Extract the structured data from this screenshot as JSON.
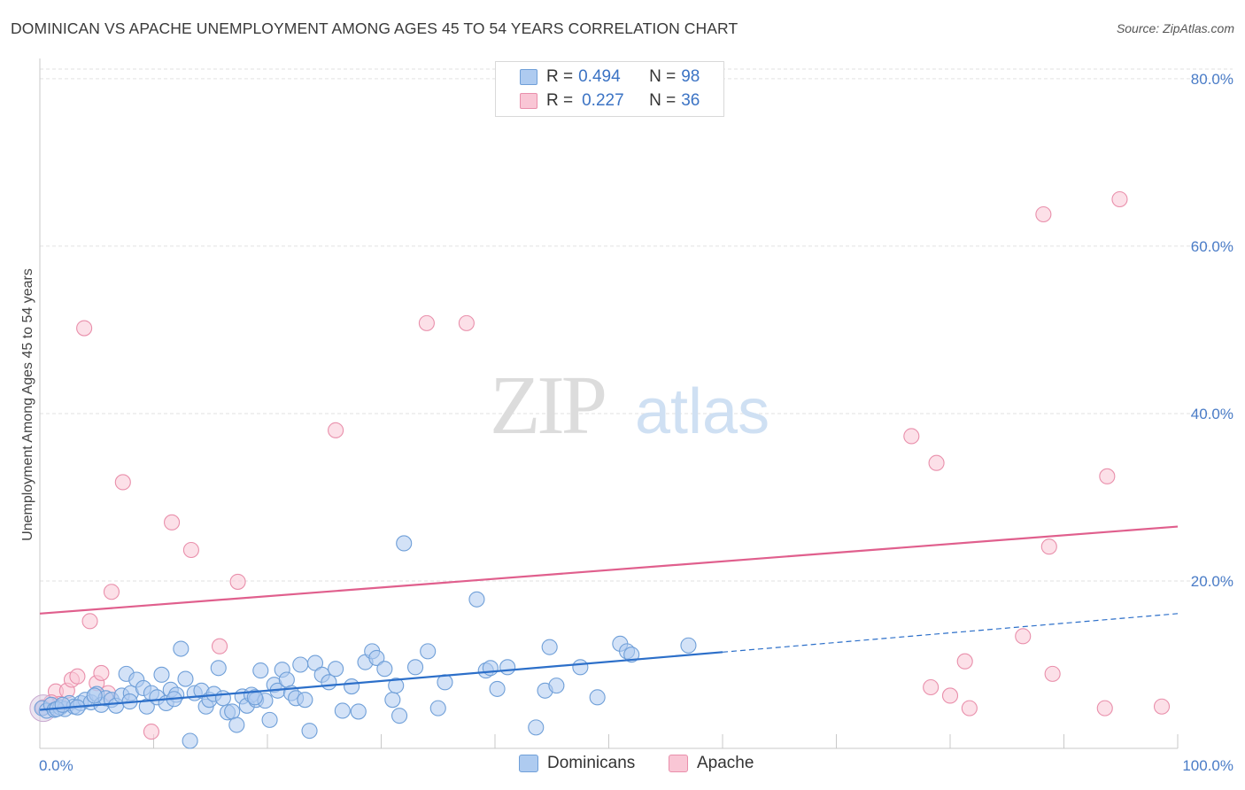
{
  "title": "DOMINICAN VS APACHE UNEMPLOYMENT AMONG AGES 45 TO 54 YEARS CORRELATION CHART",
  "source": "Source: ZipAtlas.com",
  "watermark": {
    "zip": "ZIP",
    "atlas": "atlas"
  },
  "legend": {
    "rows": [
      {
        "r_label": "R = ",
        "r_value": "0.494",
        "n_label": "N = ",
        "n_value": "98",
        "color": "#aecbf0",
        "stroke": "#6f9fd8"
      },
      {
        "r_label": "R = ",
        "r_value": "0.227",
        "n_label": "N = ",
        "n_value": "36",
        "color": "#f9c6d5",
        "stroke": "#e98fab"
      }
    ]
  },
  "bottom_legend": [
    {
      "label": "Dominicans",
      "color": "#aecbf0",
      "stroke": "#6f9fd8"
    },
    {
      "label": "Apache",
      "color": "#f9c6d5",
      "stroke": "#e98fab"
    }
  ],
  "chart_data": {
    "type": "scatter",
    "title": "DOMINICAN VS APACHE UNEMPLOYMENT AMONG AGES 45 TO 54 YEARS CORRELATION CHART",
    "xlabel": "",
    "ylabel": "Unemployment Among Ages 45 to 54 years",
    "xlim": [
      0,
      100
    ],
    "ylim": [
      0,
      82
    ],
    "x_tick_labels": [
      "0.0%",
      "100.0%"
    ],
    "y_ticks": [
      20,
      40,
      60,
      80
    ],
    "y_tick_labels": [
      "20.0%",
      "40.0%",
      "60.0%",
      "80.0%"
    ],
    "grid": "horizontal dashed",
    "legend_position": "top-center",
    "series": [
      {
        "name": "Dominicans",
        "color": "#6f9fd8",
        "fill": "#aecbf0",
        "trend": {
          "x0": 0,
          "y0": 4.6,
          "x1": 60,
          "y1": 11.5,
          "dashed_to_x": 100,
          "dashed_to_y": 16.1,
          "color": "#2c6fc9"
        },
        "points": [
          [
            0.2,
            4.8
          ],
          [
            0.6,
            4.5
          ],
          [
            1.0,
            5.2
          ],
          [
            1.3,
            4.6
          ],
          [
            1.8,
            4.9
          ],
          [
            2.2,
            4.7
          ],
          [
            2.6,
            5.4
          ],
          [
            3.0,
            5.0
          ],
          [
            3.6,
            5.4
          ],
          [
            4.0,
            5.8
          ],
          [
            4.5,
            5.5
          ],
          [
            5.0,
            6.5
          ],
          [
            5.4,
            5.2
          ],
          [
            5.8,
            6.0
          ],
          [
            6.3,
            5.8
          ],
          [
            6.7,
            5.1
          ],
          [
            7.2,
            6.3
          ],
          [
            7.6,
            8.9
          ],
          [
            8.0,
            6.6
          ],
          [
            8.5,
            8.2
          ],
          [
            9.1,
            7.2
          ],
          [
            9.4,
            5.0
          ],
          [
            9.8,
            6.6
          ],
          [
            10.3,
            6.1
          ],
          [
            10.7,
            8.8
          ],
          [
            11.1,
            5.4
          ],
          [
            11.5,
            7.0
          ],
          [
            12.0,
            6.4
          ],
          [
            12.4,
            11.9
          ],
          [
            12.8,
            8.3
          ],
          [
            13.2,
            0.9
          ],
          [
            13.6,
            6.6
          ],
          [
            14.2,
            6.9
          ],
          [
            14.6,
            5.0
          ],
          [
            14.9,
            5.8
          ],
          [
            15.3,
            6.5
          ],
          [
            15.7,
            9.6
          ],
          [
            16.1,
            6.0
          ],
          [
            16.5,
            4.3
          ],
          [
            16.9,
            4.4
          ],
          [
            17.3,
            2.8
          ],
          [
            17.8,
            6.2
          ],
          [
            18.2,
            5.1
          ],
          [
            18.6,
            6.4
          ],
          [
            19.0,
            5.8
          ],
          [
            19.4,
            9.3
          ],
          [
            19.8,
            5.7
          ],
          [
            20.2,
            3.4
          ],
          [
            20.6,
            7.6
          ],
          [
            20.9,
            6.9
          ],
          [
            21.3,
            9.4
          ],
          [
            21.7,
            8.2
          ],
          [
            22.1,
            6.6
          ],
          [
            22.5,
            6.0
          ],
          [
            22.9,
            10.0
          ],
          [
            23.3,
            5.8
          ],
          [
            23.7,
            2.1
          ],
          [
            24.2,
            10.2
          ],
          [
            24.8,
            8.8
          ],
          [
            25.4,
            7.9
          ],
          [
            26.0,
            9.5
          ],
          [
            26.6,
            4.5
          ],
          [
            27.4,
            7.4
          ],
          [
            28.0,
            4.4
          ],
          [
            28.6,
            10.3
          ],
          [
            29.2,
            11.6
          ],
          [
            29.6,
            10.8
          ],
          [
            30.3,
            9.5
          ],
          [
            31.0,
            5.8
          ],
          [
            31.3,
            7.5
          ],
          [
            31.6,
            3.9
          ],
          [
            32.0,
            24.5
          ],
          [
            33.0,
            9.7
          ],
          [
            34.1,
            11.6
          ],
          [
            35.0,
            4.8
          ],
          [
            35.6,
            7.9
          ],
          [
            38.4,
            17.8
          ],
          [
            39.2,
            9.3
          ],
          [
            39.6,
            9.6
          ],
          [
            40.2,
            7.1
          ],
          [
            41.1,
            9.7
          ],
          [
            43.6,
            2.5
          ],
          [
            44.4,
            6.9
          ],
          [
            44.8,
            12.1
          ],
          [
            45.4,
            7.5
          ],
          [
            47.5,
            9.7
          ],
          [
            49.0,
            6.1
          ],
          [
            51.0,
            12.5
          ],
          [
            51.6,
            11.6
          ],
          [
            52.0,
            11.2
          ],
          [
            57.0,
            12.3
          ],
          [
            1.5,
            4.7
          ],
          [
            2.0,
            5.2
          ],
          [
            3.3,
            4.9
          ],
          [
            4.8,
            6.3
          ],
          [
            7.9,
            5.6
          ],
          [
            11.8,
            5.9
          ],
          [
            18.9,
            6.1
          ]
        ]
      },
      {
        "name": "Apache",
        "color": "#e98fab",
        "fill": "#f9c6d5",
        "trend": {
          "x0": 0,
          "y0": 16.1,
          "x1": 100,
          "y1": 26.5,
          "color": "#e05f8d"
        },
        "points": [
          [
            0.3,
            4.9
          ],
          [
            1.4,
            6.8
          ],
          [
            1.7,
            5.3
          ],
          [
            2.4,
            6.9
          ],
          [
            2.8,
            8.2
          ],
          [
            3.3,
            8.6
          ],
          [
            3.9,
            50.2
          ],
          [
            4.4,
            15.2
          ],
          [
            5.0,
            7.8
          ],
          [
            5.4,
            9.0
          ],
          [
            6.0,
            6.6
          ],
          [
            6.3,
            18.7
          ],
          [
            7.3,
            31.8
          ],
          [
            9.8,
            2.0
          ],
          [
            11.6,
            27.0
          ],
          [
            13.3,
            23.7
          ],
          [
            15.8,
            12.2
          ],
          [
            17.4,
            19.9
          ],
          [
            26.0,
            38.0
          ],
          [
            34.0,
            50.8
          ],
          [
            37.5,
            50.8
          ],
          [
            76.6,
            37.3
          ],
          [
            78.3,
            7.3
          ],
          [
            78.8,
            34.1
          ],
          [
            80.0,
            6.3
          ],
          [
            81.3,
            10.4
          ],
          [
            81.7,
            4.8
          ],
          [
            86.4,
            13.4
          ],
          [
            88.2,
            63.8
          ],
          [
            88.7,
            24.1
          ],
          [
            89.0,
            8.9
          ],
          [
            93.6,
            4.8
          ],
          [
            93.8,
            32.5
          ],
          [
            94.9,
            65.6
          ],
          [
            98.6,
            5.0
          ],
          [
            1.0,
            5.5
          ]
        ]
      }
    ]
  }
}
